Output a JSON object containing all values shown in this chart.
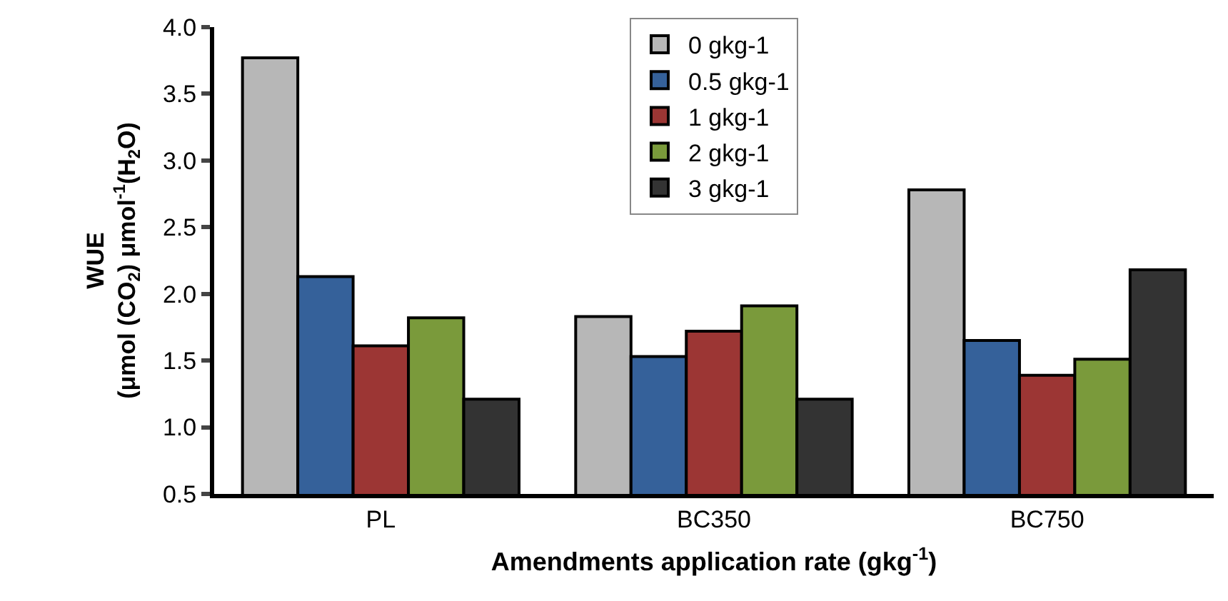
{
  "chart_data": {
    "type": "bar",
    "categories": [
      "PL",
      "BC350",
      "BC750"
    ],
    "series": [
      {
        "name": "0 gkg-1",
        "color": "#b7b7b7",
        "values": [
          3.77,
          1.83,
          2.78
        ]
      },
      {
        "name": "0.5 gkg-1",
        "color": "#35619a",
        "values": [
          2.13,
          1.53,
          1.65
        ]
      },
      {
        "name": "1 gkg-1",
        "color": "#9c3634",
        "values": [
          1.61,
          1.72,
          1.39
        ]
      },
      {
        "name": "2 gkg-1",
        "color": "#7a9a3b",
        "values": [
          1.82,
          1.91,
          1.51
        ]
      },
      {
        "name": "3 gkg-1",
        "color": "#333333",
        "values": [
          1.21,
          1.21,
          2.18
        ]
      }
    ],
    "ylabel": "WUE\n(μmol (CO$_{2}$) μmol$^{-1}$(H$_{2}$O)",
    "xlabel": "Amendments application rate (gkg$^{-1}$)",
    "ylim": [
      0.5,
      4.0
    ],
    "yticks": [
      {
        "value": 0.5,
        "label": "0.5"
      },
      {
        "value": 1,
        "label": "1.0"
      },
      {
        "value": 1.5,
        "label": "1.5"
      },
      {
        "value": 2,
        "label": "2.0"
      },
      {
        "value": 2.5,
        "label": "2.5"
      },
      {
        "value": 3,
        "label": "3.0"
      },
      {
        "value": 3.5,
        "label": "3.5"
      },
      {
        "value": 4,
        "label": "4.0"
      }
    ],
    "legend": "top"
  }
}
